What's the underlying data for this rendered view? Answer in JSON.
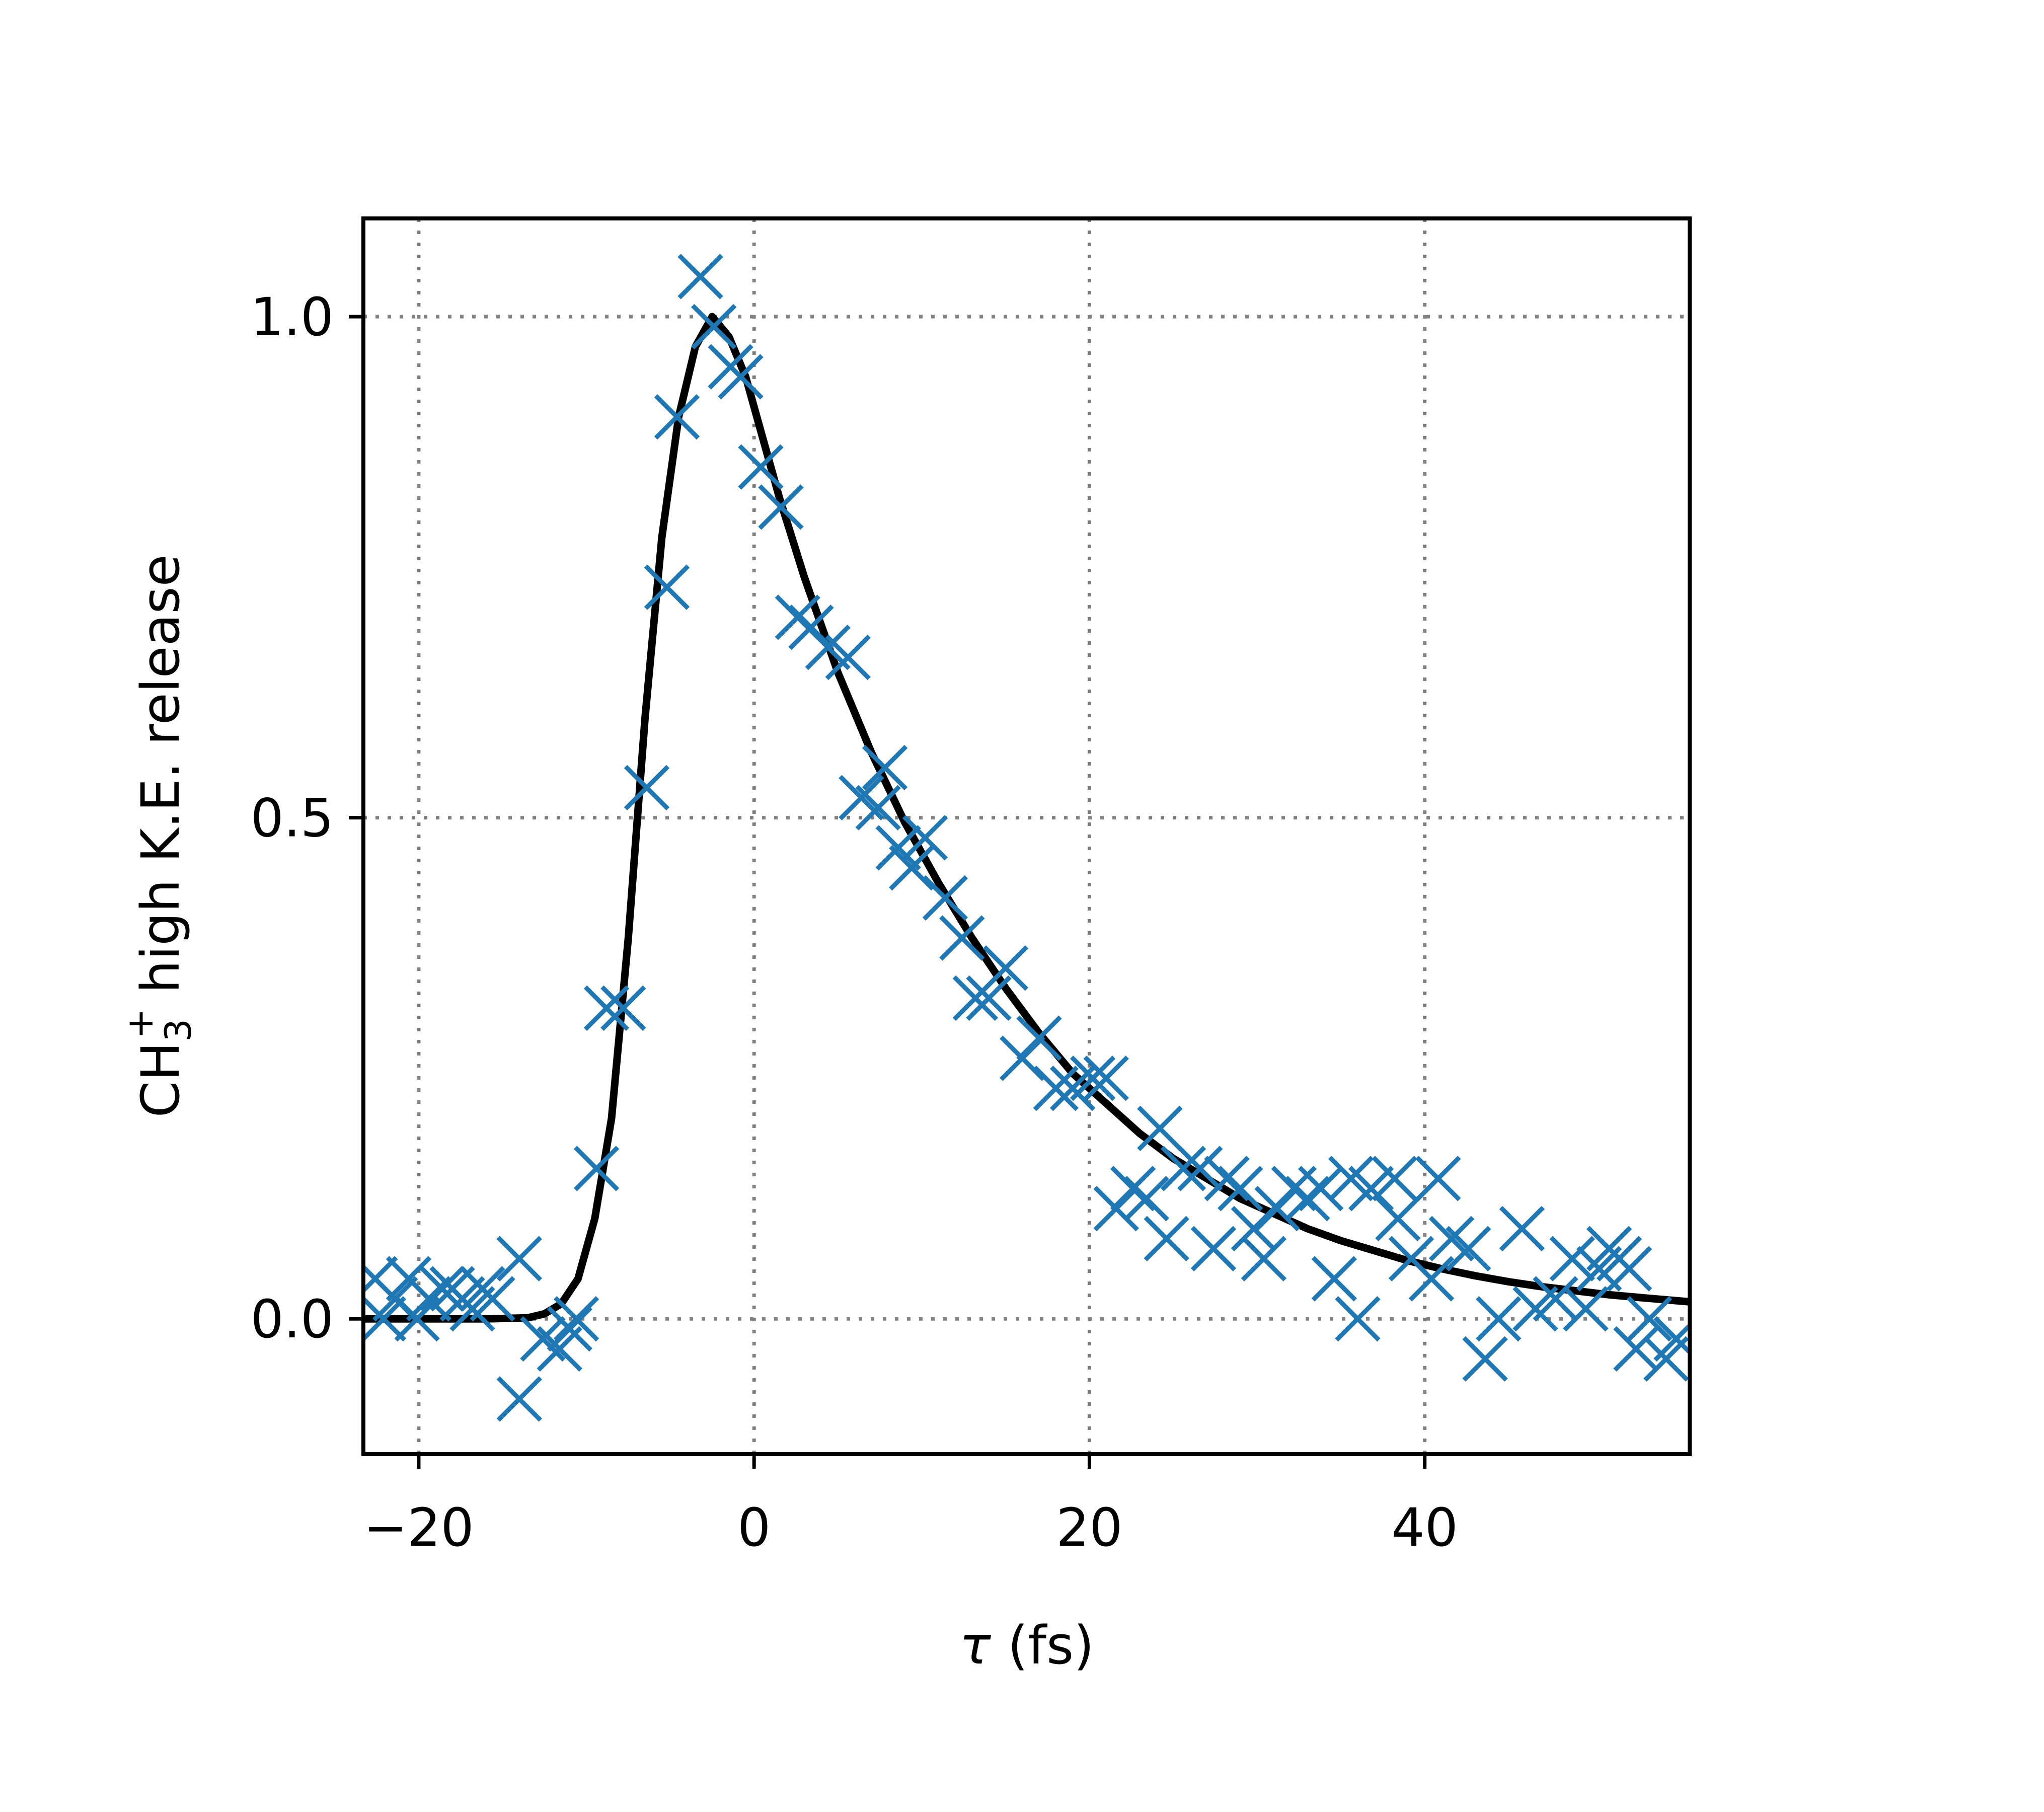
{
  "chart_data": {
    "type": "scatter",
    "title": "",
    "xlabel": "τ (fs)",
    "ylabel": {
      "prefix": "CH",
      "subscript": "3",
      "superscript": "+",
      "suffix": "high K.E. release"
    },
    "xlim": [
      -23.3,
      55.8
    ],
    "ylim": [
      -0.135,
      1.098
    ],
    "x_ticks": [
      {
        "value": -20,
        "label": "−20"
      },
      {
        "value": 0,
        "label": "0"
      },
      {
        "value": 20,
        "label": "20"
      },
      {
        "value": 40,
        "label": "40"
      }
    ],
    "y_ticks": [
      {
        "value": 0.0,
        "label": "0.0"
      },
      {
        "value": 0.5,
        "label": "0.5"
      },
      {
        "value": 1.0,
        "label": "1.0"
      }
    ],
    "grid": true,
    "grid_style": "dotted",
    "legend": false,
    "colors": {
      "data": "#1f77b4",
      "fit": "#000000",
      "grid": "#808080",
      "axes": "#000000"
    },
    "series": [
      {
        "kind": "markers",
        "marker": "x",
        "points": [
          {
            "x": -22.6,
            "y": 0.04
          },
          {
            "x": -22.1,
            "y": 0.0
          },
          {
            "x": -21.4,
            "y": 0.02
          },
          {
            "x": -20.6,
            "y": 0.04
          },
          {
            "x": -20.1,
            "y": 0.0
          },
          {
            "x": -19.4,
            "y": 0.02
          },
          {
            "x": -18.6,
            "y": 0.03
          },
          {
            "x": -18.0,
            "y": 0.03
          },
          {
            "x": -17.4,
            "y": 0.02
          },
          {
            "x": -16.8,
            "y": 0.01
          },
          {
            "x": -16.2,
            "y": 0.03
          },
          {
            "x": -15.6,
            "y": 0.02
          },
          {
            "x": -14.0,
            "y": 0.06
          },
          {
            "x": -14.0,
            "y": -0.08
          },
          {
            "x": -12.6,
            "y": -0.02
          },
          {
            "x": -11.6,
            "y": -0.03
          },
          {
            "x": -10.6,
            "y": 0.0
          },
          {
            "x": -11.0,
            "y": -0.01
          },
          {
            "x": -9.4,
            "y": 0.15
          },
          {
            "x": -8.8,
            "y": 0.31
          },
          {
            "x": -7.8,
            "y": 0.31
          },
          {
            "x": -6.4,
            "y": 0.53
          },
          {
            "x": -5.2,
            "y": 0.73
          },
          {
            "x": -4.6,
            "y": 0.9
          },
          {
            "x": -3.2,
            "y": 1.04
          },
          {
            "x": -2.4,
            "y": 0.99
          },
          {
            "x": -1.4,
            "y": 0.95
          },
          {
            "x": -0.8,
            "y": 0.94
          },
          {
            "x": 0.4,
            "y": 0.85
          },
          {
            "x": 1.6,
            "y": 0.81
          },
          {
            "x": 2.6,
            "y": 0.7
          },
          {
            "x": 3.4,
            "y": 0.69
          },
          {
            "x": 4.4,
            "y": 0.67
          },
          {
            "x": 5.6,
            "y": 0.66
          },
          {
            "x": 6.4,
            "y": 0.52
          },
          {
            "x": 7.4,
            "y": 0.51
          },
          {
            "x": 7.8,
            "y": 0.55
          },
          {
            "x": 8.6,
            "y": 0.47
          },
          {
            "x": 9.4,
            "y": 0.45
          },
          {
            "x": 10.2,
            "y": 0.48
          },
          {
            "x": 11.4,
            "y": 0.42
          },
          {
            "x": 12.4,
            "y": 0.38
          },
          {
            "x": 13.2,
            "y": 0.32
          },
          {
            "x": 14.0,
            "y": 0.32
          },
          {
            "x": 15.0,
            "y": 0.35
          },
          {
            "x": 16.0,
            "y": 0.26
          },
          {
            "x": 17.0,
            "y": 0.28
          },
          {
            "x": 18.0,
            "y": 0.23
          },
          {
            "x": 19.0,
            "y": 0.23
          },
          {
            "x": 20.2,
            "y": 0.24
          },
          {
            "x": 21.0,
            "y": 0.24
          },
          {
            "x": 21.6,
            "y": 0.11
          },
          {
            "x": 22.6,
            "y": 0.13
          },
          {
            "x": 23.4,
            "y": 0.12
          },
          {
            "x": 24.2,
            "y": 0.19
          },
          {
            "x": 24.6,
            "y": 0.08
          },
          {
            "x": 25.6,
            "y": 0.15
          },
          {
            "x": 26.6,
            "y": 0.15
          },
          {
            "x": 27.4,
            "y": 0.07
          },
          {
            "x": 28.2,
            "y": 0.14
          },
          {
            "x": 29.0,
            "y": 0.13
          },
          {
            "x": 29.8,
            "y": 0.09
          },
          {
            "x": 30.4,
            "y": 0.06
          },
          {
            "x": 31.2,
            "y": 0.11
          },
          {
            "x": 32.2,
            "y": 0.13
          },
          {
            "x": 33.0,
            "y": 0.12
          },
          {
            "x": 33.8,
            "y": 0.13
          },
          {
            "x": 34.6,
            "y": 0.04
          },
          {
            "x": 35.6,
            "y": 0.14
          },
          {
            "x": 36.0,
            "y": 0.0
          },
          {
            "x": 36.8,
            "y": 0.13
          },
          {
            "x": 38.2,
            "y": 0.14
          },
          {
            "x": 38.4,
            "y": 0.1
          },
          {
            "x": 39.2,
            "y": 0.06
          },
          {
            "x": 40.4,
            "y": 0.04
          },
          {
            "x": 40.8,
            "y": 0.14
          },
          {
            "x": 41.6,
            "y": 0.08
          },
          {
            "x": 42.6,
            "y": 0.07
          },
          {
            "x": 43.6,
            "y": -0.04
          },
          {
            "x": 44.4,
            "y": 0.0
          },
          {
            "x": 45.8,
            "y": 0.09
          },
          {
            "x": 46.6,
            "y": 0.01
          },
          {
            "x": 47.8,
            "y": 0.02
          },
          {
            "x": 48.8,
            "y": 0.06
          },
          {
            "x": 49.6,
            "y": 0.01
          },
          {
            "x": 50.4,
            "y": 0.05
          },
          {
            "x": 51.0,
            "y": 0.07
          },
          {
            "x": 51.6,
            "y": 0.06
          },
          {
            "x": 52.2,
            "y": 0.05
          },
          {
            "x": 52.6,
            "y": -0.03
          },
          {
            "x": 53.4,
            "y": 0.0
          },
          {
            "x": 54.4,
            "y": -0.04
          },
          {
            "x": 55.0,
            "y": -0.02
          }
        ]
      },
      {
        "kind": "line",
        "points": [
          {
            "x": -23.3,
            "y": 0.0
          },
          {
            "x": -16.0,
            "y": 0.0
          },
          {
            "x": -13.5,
            "y": 0.001
          },
          {
            "x": -12.5,
            "y": 0.005
          },
          {
            "x": -11.5,
            "y": 0.015
          },
          {
            "x": -10.5,
            "y": 0.04
          },
          {
            "x": -9.5,
            "y": 0.1
          },
          {
            "x": -8.5,
            "y": 0.2
          },
          {
            "x": -7.5,
            "y": 0.38
          },
          {
            "x": -6.5,
            "y": 0.6
          },
          {
            "x": -5.5,
            "y": 0.78
          },
          {
            "x": -4.5,
            "y": 0.9
          },
          {
            "x": -3.5,
            "y": 0.97
          },
          {
            "x": -2.5,
            "y": 1.0
          },
          {
            "x": -1.5,
            "y": 0.98
          },
          {
            "x": -0.5,
            "y": 0.94
          },
          {
            "x": 0.5,
            "y": 0.88
          },
          {
            "x": 1.5,
            "y": 0.82
          },
          {
            "x": 3.0,
            "y": 0.74
          },
          {
            "x": 5.0,
            "y": 0.645
          },
          {
            "x": 7.0,
            "y": 0.565
          },
          {
            "x": 9.0,
            "y": 0.495
          },
          {
            "x": 11.0,
            "y": 0.435
          },
          {
            "x": 13.0,
            "y": 0.38
          },
          {
            "x": 15.0,
            "y": 0.33
          },
          {
            "x": 17.0,
            "y": 0.285
          },
          {
            "x": 19.0,
            "y": 0.245
          },
          {
            "x": 21.0,
            "y": 0.215
          },
          {
            "x": 23.0,
            "y": 0.185
          },
          {
            "x": 25.0,
            "y": 0.16
          },
          {
            "x": 27.0,
            "y": 0.14
          },
          {
            "x": 29.0,
            "y": 0.12
          },
          {
            "x": 31.0,
            "y": 0.105
          },
          {
            "x": 33.0,
            "y": 0.09
          },
          {
            "x": 35.0,
            "y": 0.078
          },
          {
            "x": 37.0,
            "y": 0.068
          },
          {
            "x": 39.0,
            "y": 0.058
          },
          {
            "x": 41.0,
            "y": 0.05
          },
          {
            "x": 43.0,
            "y": 0.043
          },
          {
            "x": 45.0,
            "y": 0.037
          },
          {
            "x": 47.0,
            "y": 0.032
          },
          {
            "x": 49.0,
            "y": 0.028
          },
          {
            "x": 51.0,
            "y": 0.024
          },
          {
            "x": 53.0,
            "y": 0.021
          },
          {
            "x": 55.8,
            "y": 0.017
          }
        ]
      }
    ]
  }
}
